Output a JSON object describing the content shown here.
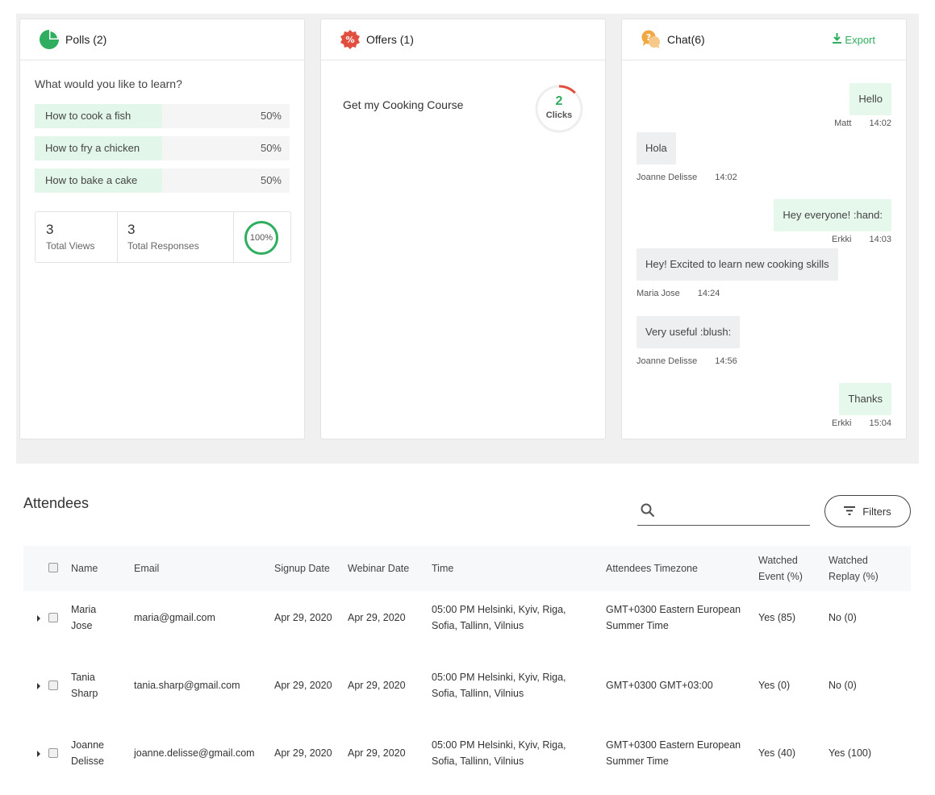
{
  "polls": {
    "title": "Polls (2)",
    "question": "What would you like to learn?",
    "options": [
      {
        "label": "How to cook a fish",
        "percent": "50%",
        "value": 50
      },
      {
        "label": "How to fry a chicken",
        "percent": "50%",
        "value": 50
      },
      {
        "label": "How to bake a cake",
        "percent": "50%",
        "value": 50
      }
    ],
    "total_views": "3",
    "total_views_label": "Total Views",
    "total_responses": "3",
    "total_responses_label": "Total Responses",
    "response_rate": "100%",
    "icon": "pie-chart-icon",
    "accent": "#2eae5e"
  },
  "offers": {
    "title": "Offers (1)",
    "icon": "percent-badge-icon",
    "offer_name": "Get my Cooking Course",
    "clicks": "2",
    "clicks_label": "Clicks"
  },
  "chat": {
    "title": "Chat(6)",
    "icon": "chat-bubbles-icon",
    "export_label": "Export",
    "messages": [
      {
        "text": "Hello",
        "author": "Matt",
        "time": "14:02",
        "dir": "out"
      },
      {
        "text": "Hola",
        "author": "Joanne Delisse",
        "time": "14:02",
        "dir": "in"
      },
      {
        "text": "Hey everyone! :hand:",
        "author": "Erkki",
        "time": "14:03",
        "dir": "out"
      },
      {
        "text": "Hey! Excited to learn new cooking skills",
        "author": "Maria Jose",
        "time": "14:24",
        "dir": "in"
      },
      {
        "text": "Very useful :blush:",
        "author": "Joanne Delisse",
        "time": "14:56",
        "dir": "in"
      },
      {
        "text": "Thanks",
        "author": "Erkki",
        "time": "15:04",
        "dir": "out"
      }
    ]
  },
  "attendees": {
    "title": "Attendees",
    "search_placeholder": "",
    "filters_label": "Filters",
    "columns": {
      "name": "Name",
      "email": "Email",
      "signup": "Signup Date",
      "webinar": "Webinar Date",
      "time": "Time",
      "tz": "Attendees Timezone",
      "watched_event_1": "Watched",
      "watched_event_2": "Event (%)",
      "watched_replay_1": "Watched",
      "watched_replay_2": "Replay (%)"
    },
    "rows": [
      {
        "first": "Maria",
        "last": "Jose",
        "email": "maria@gmail.com",
        "signup": "Apr 29, 2020",
        "webinar": "Apr 29, 2020",
        "time1": "05:00 PM Helsinki, Kyiv, Riga,",
        "time2": "Sofia, Tallinn, Vilnius",
        "tz1": "GMT+0300 Eastern European",
        "tz2": "Summer Time",
        "event": "Yes (85)",
        "replay": "No (0)"
      },
      {
        "first": "Tania",
        "last": "Sharp",
        "email": "tania.sharp@gmail.com",
        "signup": "Apr 29, 2020",
        "webinar": "Apr 29, 2020",
        "time1": "05:00 PM Helsinki, Kyiv, Riga,",
        "time2": "Sofia, Tallinn, Vilnius",
        "tz1": "GMT+0300 GMT+03:00",
        "tz2": "",
        "event": "Yes (0)",
        "replay": "No (0)"
      },
      {
        "first": "Joanne",
        "last": "Delisse",
        "email": "joanne.delisse@gmail.com",
        "signup": "Apr 29, 2020",
        "webinar": "Apr 29, 2020",
        "time1": "05:00 PM Helsinki, Kyiv, Riga,",
        "time2": "Sofia, Tallinn, Vilnius",
        "tz1": "GMT+0300 Eastern European",
        "tz2": "Summer Time",
        "event": "Yes (40)",
        "replay": "Yes (100)"
      }
    ]
  }
}
